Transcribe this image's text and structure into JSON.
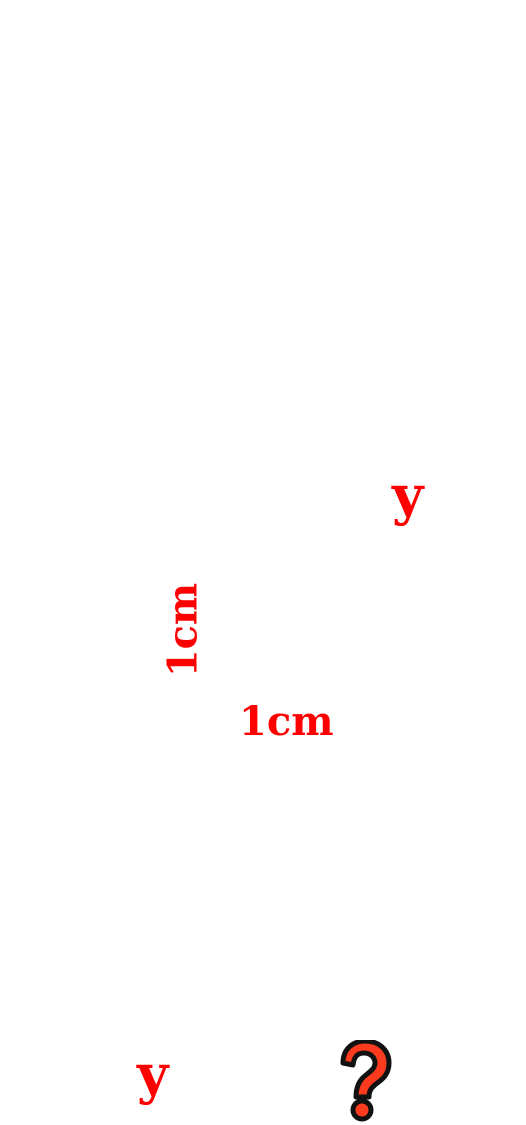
{
  "labels": {
    "top_variable": "y",
    "side_vertical": "1cm",
    "side_horizontal": "1cm",
    "bottom_variable": "y"
  },
  "icons": {
    "question": "question-mark-icon"
  },
  "colors": {
    "label": "#ff0000",
    "icon_fill": "#ff3b1f",
    "icon_outline": "#111111"
  }
}
